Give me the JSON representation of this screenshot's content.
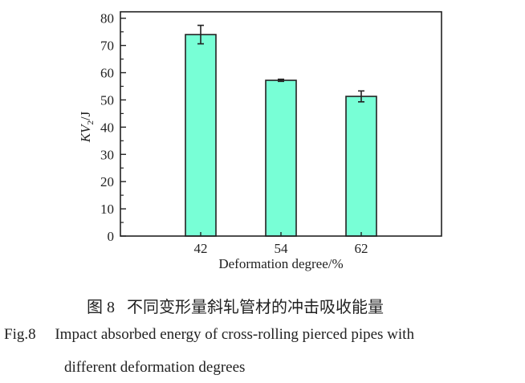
{
  "chart_data": {
    "type": "bar",
    "categories": [
      "42",
      "54",
      "62"
    ],
    "values": [
      74.0,
      57.2,
      51.3
    ],
    "errors": [
      3.4,
      0.4,
      2.0
    ],
    "xlabel": "Deformation degree/%",
    "ylabel_main": "KV",
    "ylabel_sub": "2",
    "ylabel_unit": "/J",
    "ylim": [
      0,
      80
    ],
    "yticks": [
      "0",
      "10",
      "20",
      "30",
      "40",
      "50",
      "60",
      "70",
      "80"
    ],
    "grid": false,
    "bar_color": "#78ffd6"
  },
  "caption": {
    "cn_label": "图 8",
    "cn_text": "不同变形量斜轧管材的冲击吸收能量",
    "en_label": "Fig.8",
    "en_line1": "Impact absorbed energy of cross-rolling pierced pipes with",
    "en_line2": "different deformation degrees"
  }
}
